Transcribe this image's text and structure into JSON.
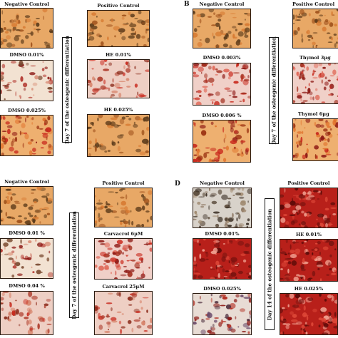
{
  "panels": {
    "A": {
      "letter": "",
      "side_label": "Day 7 of the osteogenic differentiation",
      "left": [
        "Negative Control",
        "DMSO 0.01%",
        "DMSO 0.025%"
      ],
      "right": [
        "Positive Control",
        "HE 0.01%",
        "HE 0.025%"
      ]
    },
    "B": {
      "letter": "B",
      "side_label": "Day 7 of the osteogenic differentiation",
      "left": [
        "Negative Control",
        "DMSO 0.003%",
        "DMSO 0.006 %"
      ],
      "right": [
        "Positive Control",
        "Thymol 3µg",
        "Thymol 6µg"
      ]
    },
    "C": {
      "letter": "",
      "side_label": "Day 7 of the osteogenic differentiation",
      "left": [
        "Negative Control",
        "DMSO 0.01 %",
        "DMSO 0.04 %"
      ],
      "right": [
        "Positive Control",
        "Carvacrol 6µM",
        "Carvacrol 25µM"
      ]
    },
    "D": {
      "letter": "D",
      "side_label": "Day 14 of the osteogenic differentiation",
      "left": [
        "Negative Control",
        "DMSO 0.01%",
        "DMSO 0.025%"
      ],
      "right": [
        "Positive Control",
        "HE 0.01%",
        "HE 0.025%"
      ]
    }
  },
  "colors": {
    "orange_bg": "#e8a866",
    "pale_bg": "#f2e2d2",
    "pink_bg": "#eecfc4",
    "dark_red": "#8a1410",
    "red": "#c8281c",
    "brown": "#6a4420",
    "gray_bg": "#d8d2ca"
  }
}
